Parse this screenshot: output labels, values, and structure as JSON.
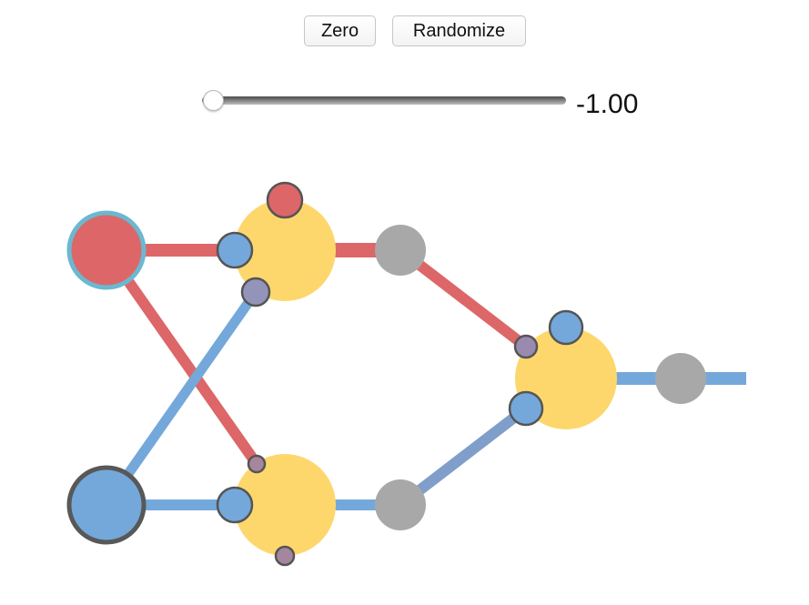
{
  "controls": {
    "zero_label": "Zero",
    "randomize_label": "Randomize",
    "slider": {
      "value": -1.0,
      "min": -1.0,
      "max": 1.0,
      "display": "-1.00"
    }
  },
  "colors": {
    "red": "#dd6668",
    "blue": "#74a8da",
    "yellow": "#fed76c",
    "gray": "#a8a8a8",
    "purple": "#9494bb",
    "mauve": "#a6869e",
    "slate_blue": "#7f9fca",
    "input_ring_cyan": "#6ab9d0",
    "input_ring_dark": "#585858",
    "outline": "#555555"
  }
}
